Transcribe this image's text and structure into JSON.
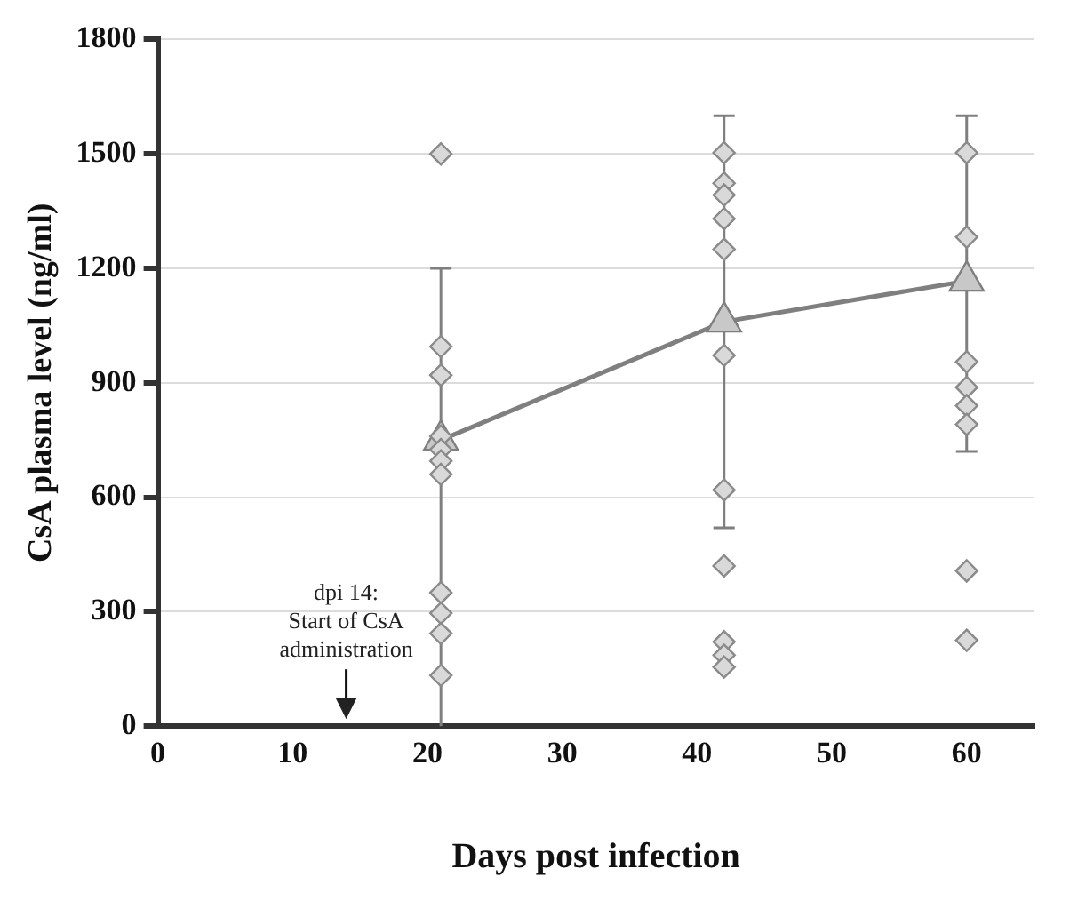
{
  "chart_data": {
    "type": "line",
    "xlabel": "Days post infection",
    "ylabel": "CsA plasma level (ng/ml)",
    "xlim": [
      0,
      65
    ],
    "xticks": [
      0,
      10,
      20,
      30,
      40,
      50,
      60
    ],
    "ylim": [
      0,
      1800
    ],
    "yticks": [
      0,
      300,
      600,
      900,
      1200,
      1500,
      1800
    ],
    "grid": "y",
    "legend": false,
    "series": [
      {
        "type": "scatter",
        "marker": "diamond",
        "color": "#d9d9d9",
        "x": [
          21,
          21,
          21,
          21,
          21,
          21,
          21,
          21,
          21,
          21,
          21,
          42,
          42,
          42,
          42,
          42,
          42,
          42,
          42,
          42,
          42,
          42,
          60,
          60,
          60,
          60,
          60,
          60,
          60,
          60
        ],
        "values": [
          1500,
          995,
          920,
          760,
          725,
          695,
          660,
          350,
          296,
          243,
          133,
          1503,
          1423,
          1392,
          1330,
          1250,
          972,
          619,
          420,
          221,
          186,
          155,
          1503,
          1282,
          955,
          888,
          840,
          791,
          407,
          225
        ]
      },
      {
        "type": "line",
        "marker": "triangle",
        "color": "#7f7f7f",
        "x": [
          21,
          42,
          60
        ],
        "values": [
          750,
          1060,
          1167
        ],
        "errors": [
          [
            0,
            1200
          ],
          [
            520,
            1600
          ],
          [
            720,
            1600
          ]
        ]
      }
    ],
    "annotations": [
      "dpi 14:\nStart of CsA\nadministration"
    ]
  }
}
